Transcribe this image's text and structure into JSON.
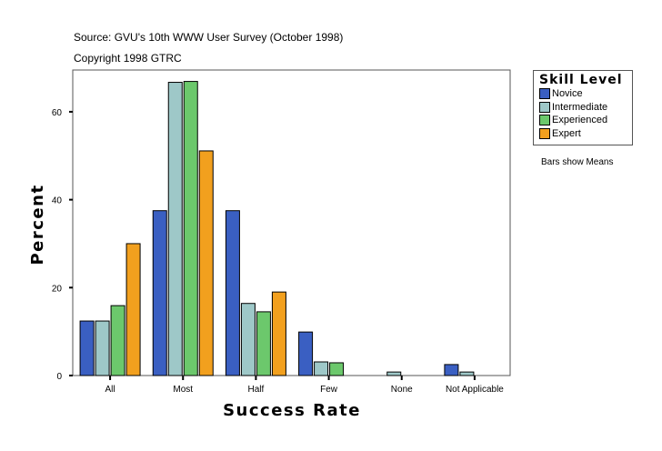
{
  "header": {
    "source": "Source: GVU's 10th WWW User Survey (October 1998)",
    "copyright": "Copyright 1998 GTRC"
  },
  "note": "Bars show Means",
  "chart_data": {
    "type": "bar",
    "title": "",
    "xlabel": "Success Rate",
    "ylabel": "Percent",
    "ylim": [
      0,
      69.5
    ],
    "yticks": [
      0,
      20,
      40,
      60
    ],
    "grid": false,
    "legend_title": "Skill Level",
    "legend_position": "top-right",
    "categories": [
      "All",
      "Most",
      "Half",
      "Few",
      "None",
      "Not Applicable"
    ],
    "series": [
      {
        "name": "Novice",
        "color": "#3a5fc2",
        "values": [
          12.4,
          37.5,
          37.5,
          9.9,
          0,
          2.5
        ]
      },
      {
        "name": "Intermediate",
        "color": "#9ec8c8",
        "values": [
          12.4,
          66.7,
          16.4,
          3.1,
          0.8,
          0.8
        ]
      },
      {
        "name": "Experienced",
        "color": "#6cc86c",
        "values": [
          15.9,
          66.9,
          14.5,
          2.9,
          0,
          0
        ]
      },
      {
        "name": "Expert",
        "color": "#f2a01e",
        "values": [
          30.0,
          51.1,
          19.0,
          0,
          0,
          0
        ]
      }
    ]
  }
}
